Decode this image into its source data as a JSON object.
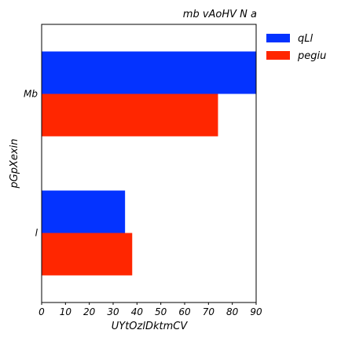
{
  "chart_data": {
    "type": "bar",
    "orientation": "horizontal",
    "title": "mb vAoHV N  a",
    "xlabel": "UYtOzlDktmCV",
    "ylabel": "pGpXexin",
    "categories": [
      "Mb",
      "l"
    ],
    "series": [
      {
        "name": "qLl",
        "color": "#0433ff",
        "values": [
          94,
          35
        ]
      },
      {
        "name": "pegiu",
        "color": "#ff2600",
        "values": [
          74,
          38
        ]
      }
    ],
    "xlim": [
      0,
      90
    ],
    "xticks": [
      0,
      10,
      20,
      30,
      40,
      50,
      60,
      70,
      80,
      90
    ],
    "grid": false,
    "legend_position": "outside-top-right"
  }
}
